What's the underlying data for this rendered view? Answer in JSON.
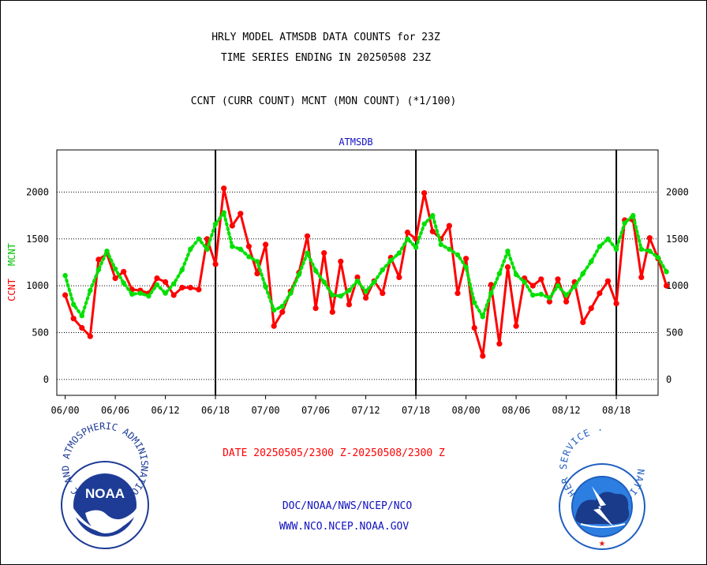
{
  "chart_data": {
    "type": "line",
    "title_lines": [
      "HRLY MODEL ATMSDB DATA COUNTS for 23Z",
      "TIME SERIES ENDING IN 20250508 23Z"
    ],
    "subtitle": "CCNT (CURR COUNT) MCNT (MON COUNT) (*1/100)",
    "panel_label": "ATMSDB",
    "ylabel_left": [
      "CCNT",
      "MCNT"
    ],
    "date_range": "DATE 20250505/2300 Z-20250508/2300 Z",
    "x_ticks": [
      "06/00",
      "06/06",
      "06/12",
      "06/18",
      "07/00",
      "07/06",
      "07/12",
      "07/18",
      "08/00",
      "08/06",
      "08/12",
      "08/18"
    ],
    "x_tick_hours": [
      0,
      6,
      12,
      18,
      24,
      30,
      36,
      42,
      48,
      54,
      60,
      66
    ],
    "day_boundaries": [
      18,
      42,
      66
    ],
    "xlim": [
      -1,
      71
    ],
    "y_ticks": [
      0,
      500,
      1000,
      1500,
      2000
    ],
    "ylim": [
      -170,
      2450
    ],
    "series": [
      {
        "name": "CCNT",
        "color": "#ff0000",
        "style": "solid",
        "values": [
          900,
          650,
          550,
          460,
          1280,
          1340,
          1080,
          1150,
          960,
          950,
          920,
          1080,
          1040,
          900,
          980,
          980,
          960,
          1500,
          1230,
          2040,
          1640,
          1770,
          1420,
          1130,
          1440,
          570,
          720,
          940,
          1140,
          1530,
          760,
          1350,
          720,
          1260,
          800,
          1090,
          870,
          1050,
          920,
          1300,
          1090,
          1570,
          1500,
          1990,
          1580,
          1500,
          1640,
          920,
          1290,
          550,
          250,
          1010,
          380,
          1200,
          570,
          1080,
          1000,
          1070,
          830,
          1070,
          830,
          1040,
          610,
          760,
          920,
          1050,
          810,
          1700,
          1700,
          1090,
          1510,
          1290,
          1000
        ]
      },
      {
        "name": "MCNT",
        "color": "#00e000",
        "style": "dotted",
        "values": [
          1110,
          800,
          680,
          950,
          1170,
          1370,
          1180,
          1030,
          910,
          920,
          890,
          1010,
          920,
          1020,
          1170,
          1390,
          1500,
          1390,
          1660,
          1780,
          1420,
          1390,
          1310,
          1260,
          990,
          740,
          780,
          920,
          1120,
          1350,
          1160,
          1040,
          900,
          890,
          950,
          1050,
          940,
          1040,
          1170,
          1270,
          1350,
          1500,
          1410,
          1660,
          1750,
          1440,
          1390,
          1330,
          1200,
          820,
          670,
          920,
          1130,
          1370,
          1120,
          1040,
          900,
          910,
          870,
          1000,
          900,
          990,
          1130,
          1260,
          1420,
          1500,
          1390,
          1670,
          1750,
          1390,
          1370,
          1300,
          1150
        ]
      }
    ]
  },
  "footer": {
    "line1": "DOC/NOAA/NWS/NCEP/NCO",
    "line2": "WWW.NCO.NCEP.NOAA.GOV"
  },
  "logos": {
    "noaa": {
      "center_text": "NOAA",
      "ring_text": "NATIONAL OCEANIC AND ATMOSPHERIC ADMINISTRATION · U.S. DEPARTMENT OF COMMERCE ·",
      "ring_color": "#1e3c96"
    },
    "nws": {
      "ring_text": "NATIONAL WEATHER SERVICE ·",
      "ring_color": "#1f5fc0"
    }
  }
}
